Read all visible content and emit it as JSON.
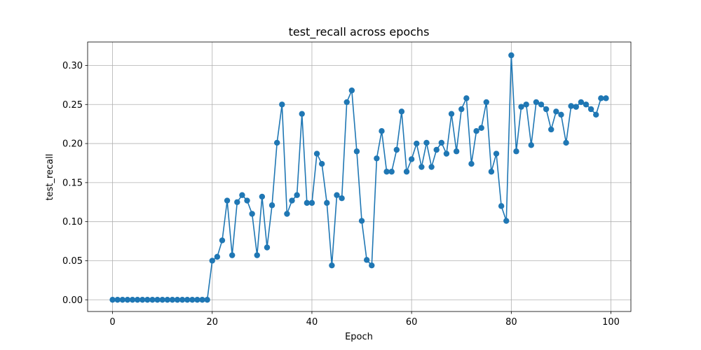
{
  "chart_data": {
    "type": "line",
    "title": "test_recall across epochs",
    "xlabel": "Epoch",
    "ylabel": "test_recall",
    "xlim": [
      -5,
      104
    ],
    "ylim": [
      -0.015,
      0.33
    ],
    "xticks": [
      "0",
      "20",
      "40",
      "60",
      "80",
      "100"
    ],
    "yticks": [
      "0.00",
      "0.05",
      "0.10",
      "0.15",
      "0.20",
      "0.25",
      "0.30"
    ],
    "grid": true,
    "colors": {
      "series": "#1f77b4",
      "grid": "#b0b0b0"
    },
    "series": [
      {
        "x": [
          0,
          1,
          2,
          3,
          4,
          5,
          6,
          7,
          8,
          9,
          10,
          11,
          12,
          13,
          14,
          15,
          16,
          17,
          18,
          19,
          20,
          21,
          22,
          23,
          24,
          25,
          26,
          27,
          28,
          29,
          30,
          31,
          32,
          33,
          34,
          35,
          36,
          37,
          38,
          39,
          40,
          41,
          42,
          43,
          44,
          45,
          46,
          47,
          48,
          49,
          50,
          51,
          52,
          53,
          54,
          55,
          56,
          57,
          58,
          59,
          60,
          61,
          62,
          63,
          64,
          65,
          66,
          67,
          68,
          69,
          70,
          71,
          72,
          73,
          74,
          75,
          76,
          77,
          78,
          79,
          80,
          81,
          82,
          83,
          84,
          85,
          86,
          87,
          88,
          89,
          90,
          91,
          92,
          93,
          94,
          95,
          96,
          97,
          98,
          99
        ],
        "values": [
          0,
          0,
          0,
          0,
          0,
          0,
          0,
          0,
          0,
          0,
          0,
          0,
          0,
          0,
          0,
          0,
          0,
          0,
          0,
          0,
          0.05,
          0.055,
          0.076,
          0.127,
          0.057,
          0.125,
          0.134,
          0.127,
          0.11,
          0.057,
          0.132,
          0.067,
          0.121,
          0.201,
          0.25,
          0.11,
          0.127,
          0.134,
          0.238,
          0.124,
          0.124,
          0.187,
          0.174,
          0.124,
          0.044,
          0.134,
          0.13,
          0.253,
          0.268,
          0.19,
          0.101,
          0.051,
          0.044,
          0.181,
          0.216,
          0.164,
          0.164,
          0.192,
          0.241,
          0.164,
          0.18,
          0.2,
          0.17,
          0.201,
          0.17,
          0.192,
          0.201,
          0.187,
          0.238,
          0.19,
          0.244,
          0.258,
          0.174,
          0.216,
          0.22,
          0.253,
          0.164,
          0.187,
          0.12,
          0.101,
          0.313,
          0.19,
          0.247,
          0.25,
          0.198,
          0.253,
          0.25,
          0.244,
          0.218,
          0.241,
          0.237,
          0.201,
          0.248,
          0.247,
          0.253,
          0.25,
          0.244,
          0.237,
          0.258,
          0.258
        ]
      }
    ]
  }
}
